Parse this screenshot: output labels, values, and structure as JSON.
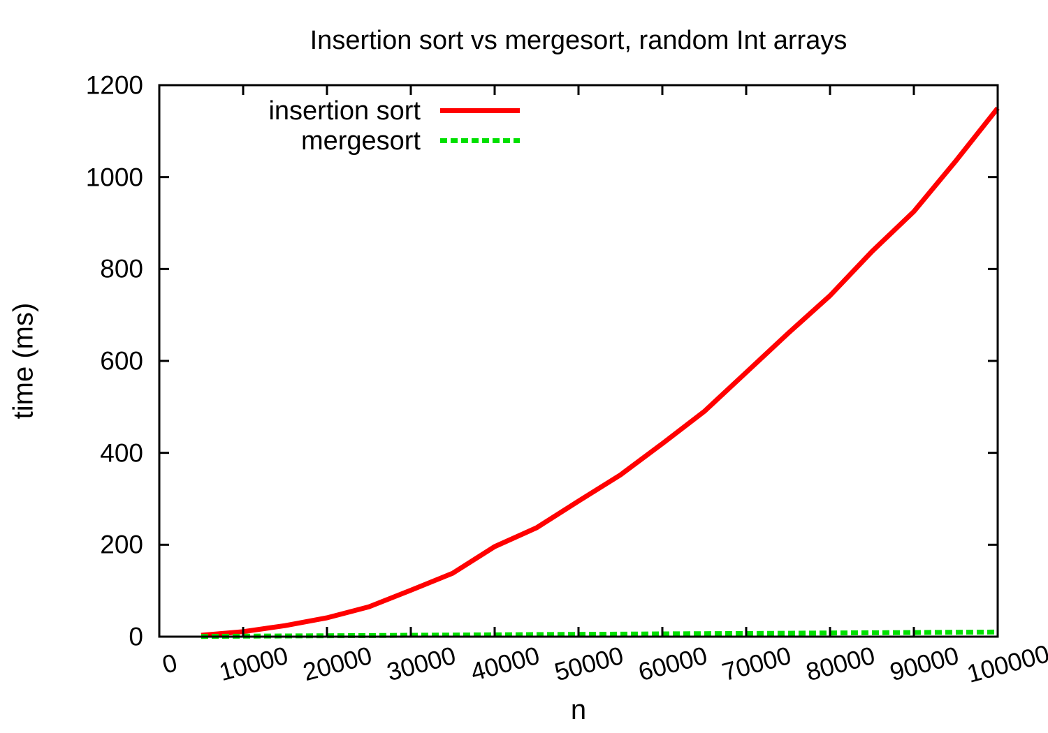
{
  "chart_data": {
    "type": "line",
    "title": "Insertion sort vs mergesort, random Int arrays",
    "xlabel": "n",
    "ylabel": "time (ms)",
    "xlim": [
      0,
      100000
    ],
    "ylim": [
      0,
      1200
    ],
    "grid": false,
    "legend_position": "top-left-inside",
    "background": "#ffffff",
    "frame_color": "#000000",
    "text_color": "#000000",
    "xticks": {
      "values": [
        0,
        10000,
        20000,
        30000,
        40000,
        50000,
        60000,
        70000,
        80000,
        90000,
        100000
      ],
      "labels": [
        "0",
        "10000",
        "20000",
        "30000",
        "40000",
        "50000",
        "60000",
        "70000",
        "80000",
        "90000",
        "100000"
      ],
      "rotation_deg": -15
    },
    "yticks": {
      "values": [
        0,
        200,
        400,
        600,
        800,
        1000,
        1200
      ],
      "labels": [
        "0",
        "200",
        "400",
        "600",
        "800",
        "1000",
        "1200"
      ]
    },
    "series": [
      {
        "name": "insertion sort",
        "color": "#ff0000",
        "line_style": "solid",
        "line_width": 7,
        "x": [
          5000,
          10000,
          15000,
          20000,
          25000,
          30000,
          35000,
          40000,
          45000,
          50000,
          55000,
          60000,
          65000,
          70000,
          75000,
          80000,
          85000,
          90000,
          95000,
          100000
        ],
        "y": [
          3,
          11,
          24,
          41,
          65,
          101,
          138,
          196,
          237,
          295,
          352,
          420,
          490,
          575,
          660,
          742,
          838,
          925,
          1035,
          1150
        ]
      },
      {
        "name": "mergesort",
        "color": "#00e000",
        "line_style": "dashed",
        "line_width": 7,
        "x": [
          5000,
          10000,
          15000,
          20000,
          25000,
          30000,
          35000,
          40000,
          45000,
          50000,
          55000,
          60000,
          65000,
          70000,
          75000,
          80000,
          85000,
          90000,
          95000,
          100000
        ],
        "y": [
          0.5,
          1,
          1.5,
          2,
          2.5,
          3,
          3.5,
          4,
          4.5,
          5,
          5.5,
          6,
          6.5,
          7,
          7.5,
          8,
          8.5,
          9,
          9.5,
          10
        ]
      }
    ]
  }
}
